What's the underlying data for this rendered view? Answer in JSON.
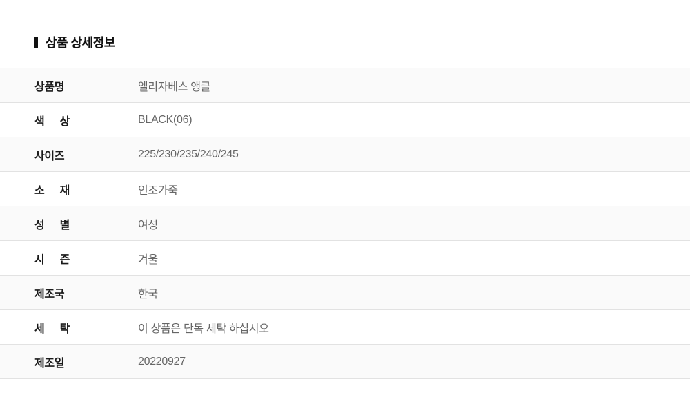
{
  "section": {
    "title": "상품 상세정보",
    "accent_bar_color": "#111111"
  },
  "table": {
    "rows": [
      {
        "label": "상품명",
        "value": "엘리자베스 앵클"
      },
      {
        "label": "색 상",
        "value": "BLACK(06)"
      },
      {
        "label": "사이즈",
        "value": "225/230/235/240/245"
      },
      {
        "label": "소 재",
        "value": "인조가죽"
      },
      {
        "label": "성 별",
        "value": "여성"
      },
      {
        "label": "시 즌",
        "value": "겨울"
      },
      {
        "label": "제조국",
        "value": "한국"
      },
      {
        "label": "세 탁",
        "value": "이 상품은 단독 세탁 하십시오"
      },
      {
        "label": "제조일",
        "value": "20220927"
      }
    ],
    "colors": {
      "stripe_bg": "#fafafa",
      "row_bg": "#ffffff",
      "divider": "#e2e2e2",
      "label_text": "#1a1a1a",
      "value_text": "#666666"
    }
  }
}
